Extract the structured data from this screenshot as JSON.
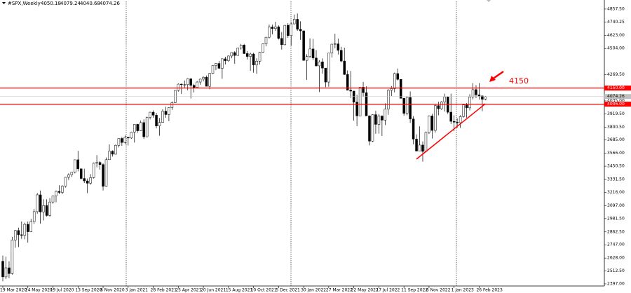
{
  "chart_data": {
    "type": "candlestick",
    "title": "#SPX,Weekly",
    "categories": [
      "19 Mar 2020",
      null,
      null,
      null,
      null,
      null,
      null,
      null,
      "24 May 2020",
      null,
      null,
      null,
      null,
      null,
      null,
      null,
      "19 Jul 2020",
      null,
      null,
      null,
      null,
      null,
      null,
      null,
      "13 Sep 2020",
      null,
      null,
      null,
      null,
      null,
      null,
      null,
      "8 Nov 2020",
      null,
      null,
      null,
      null,
      null,
      null,
      null,
      "3 Jan 2021",
      null,
      null,
      null,
      null,
      null,
      null,
      null,
      "28 Feb 2021",
      null,
      null,
      null,
      null,
      null,
      null,
      null,
      "25 Apr 2021",
      null,
      null,
      null,
      null,
      null,
      null,
      null,
      "20 Jun 2021",
      null,
      null,
      null,
      null,
      null,
      null,
      null,
      "15 Aug 2021",
      null,
      null,
      null,
      null,
      null,
      null,
      null,
      "10 Oct 2021",
      null,
      null,
      null,
      null,
      null,
      null,
      null,
      "5 Dec 2021",
      null,
      null,
      null,
      null,
      null,
      null,
      null,
      "30 Jan 2022",
      null,
      null,
      null,
      null,
      null,
      null,
      null,
      "27 Mar 2022",
      null,
      null,
      null,
      null,
      null,
      null,
      null,
      "22 May 2022",
      null,
      null,
      null,
      null,
      null,
      null,
      null,
      "17 Jul 2022",
      null,
      null,
      null,
      null,
      null,
      null,
      null,
      "11 Sep 2022",
      null,
      null,
      null,
      null,
      null,
      null,
      null,
      "6 Nov 2022",
      null,
      null,
      null,
      null,
      null,
      null,
      null,
      "1 Jan 2023",
      null,
      null,
      null,
      null,
      null,
      null,
      null,
      "26 Feb 2023",
      null,
      null
    ],
    "open": [
      2600,
      2460,
      2541,
      2489,
      2790,
      2875,
      2837,
      2831,
      2930,
      2864,
      2955,
      3044,
      3194,
      3041,
      3098,
      3009,
      3130,
      3185,
      3225,
      3216,
      3271,
      3351,
      3373,
      3397,
      3508,
      3427,
      3341,
      3319,
      3298,
      3348,
      3477,
      3484,
      3465,
      3270,
      3509,
      3585,
      3558,
      3638,
      3699,
      3663,
      3709,
      3703,
      3756,
      3825,
      3768,
      3841,
      3714,
      3887,
      3934,
      3907,
      3811,
      3842,
      3943,
      3913,
      3975,
      4020,
      4129,
      4185,
      4180,
      4181,
      4233,
      4174,
      4156,
      4204,
      4230,
      4247,
      4166,
      4281,
      4352,
      4370,
      4327,
      4412,
      4395,
      4437,
      4468,
      4442,
      4509,
      4535,
      4459,
      4433,
      4455,
      4357,
      4391,
      4471,
      4545,
      4605,
      4697,
      4683,
      4698,
      4595,
      4538,
      4712,
      4620,
      4725,
      4766,
      4677,
      4662,
      4398,
      4432,
      4500,
      4419,
      4349,
      4385,
      4329,
      4204,
      4463,
      4543,
      4546,
      4488,
      4392,
      4272,
      4132,
      4123,
      4024,
      3901,
      4158,
      4109,
      3901,
      3675,
      3912,
      3825,
      3899,
      3863,
      3962,
      4130,
      4145,
      4280,
      4228,
      4058,
      3924,
      4067,
      3873,
      3693,
      3586,
      3640,
      3583,
      3753,
      3901,
      3771,
      3993,
      3965,
      4026,
      4072,
      3934,
      3852,
      3845,
      3840,
      3895,
      3999,
      3973,
      4071,
      4136,
      4090,
      4079,
      4050.18
    ],
    "high": [
      2650,
      2640,
      2600,
      2818,
      2880,
      2900,
      2955,
      2945,
      2955,
      2980,
      3068,
      3211,
      3233,
      3155,
      3155,
      3165,
      3186,
      3233,
      3280,
      3280,
      3352,
      3387,
      3400,
      3509,
      3588,
      3430,
      3428,
      3340,
      3380,
      3483,
      3550,
      3495,
      3476,
      3529,
      3646,
      3593,
      3645,
      3700,
      3712,
      3726,
      3712,
      3760,
      3826,
      3830,
      3860,
      3870,
      3894,
      3937,
      3950,
      3928,
      3882,
      3960,
      3983,
      3978,
      4030,
      4130,
      4191,
      4191,
      4218,
      4238,
      4236,
      4188,
      4213,
      4234,
      4255,
      4262,
      4286,
      4356,
      4372,
      4393,
      4415,
      4430,
      4442,
      4470,
      4480,
      4513,
      4545,
      4545,
      4480,
      4466,
      4466,
      4416,
      4475,
      4550,
      4608,
      4718,
      4718,
      4744,
      4711,
      4652,
      4713,
      4731,
      4740,
      4808,
      4818,
      4749,
      4666,
      4453,
      4595,
      4590,
      4490,
      4400,
      4416,
      4330,
      4465,
      4546,
      4637,
      4593,
      4520,
      4512,
      4308,
      4303,
      4125,
      4090,
      4158,
      4205,
      4165,
      3905,
      3914,
      3946,
      3918,
      3906,
      4013,
      4140,
      4168,
      4289,
      4325,
      4230,
      4062,
      4077,
      4120,
      3899,
      3736,
      3807,
      3673,
      3762,
      3905,
      3920,
      4001,
      4028,
      4034,
      4100,
      4076,
      4100,
      3906,
      3878,
      3907,
      4003,
      4016,
      4095,
      4195,
      4176,
      4195,
      4085,
      4079.24
    ],
    "low": [
      2420,
      2440,
      2447,
      2480,
      2720,
      2727,
      2800,
      2797,
      2766,
      2860,
      2933,
      3025,
      2936,
      2965,
      3000,
      2999,
      3115,
      3127,
      3200,
      3200,
      3260,
      3327,
      3355,
      3386,
      3405,
      3330,
      3300,
      3209,
      3285,
      3340,
      3440,
      3420,
      3233,
      3265,
      3507,
      3537,
      3555,
      3619,
      3633,
      3648,
      3636,
      3695,
      3662,
      3750,
      3765,
      3694,
      3712,
      3870,
      3885,
      3789,
      3723,
      3840,
      3885,
      3853,
      3955,
      4015,
      4118,
      4097,
      4150,
      4130,
      4056,
      4111,
      4150,
      4180,
      4210,
      4165,
      4140,
      4275,
      4310,
      4322,
      4233,
      4362,
      4385,
      4417,
      4367,
      4440,
      4495,
      4455,
      4406,
      4305,
      4288,
      4278,
      4360,
      4465,
      4525,
      4595,
      4630,
      4662,
      4585,
      4495,
      4532,
      4600,
      4531,
      4720,
      4662,
      4582,
      4395,
      4222,
      4420,
      4401,
      4342,
      4114,
      4279,
      4157,
      4161,
      4424,
      4507,
      4450,
      4381,
      4267,
      4128,
      4062,
      3859,
      3810,
      3900,
      4073,
      3900,
      3637,
      3668,
      3741,
      3742,
      3721,
      3818,
      3910,
      4079,
      4112,
      4218,
      4057,
      3903,
      3906,
      3838,
      3647,
      3585,
      3585,
      3491,
      3582,
      3738,
      3698,
      3751,
      3906,
      3955,
      3940,
      3918,
      3828,
      3764,
      3795,
      3794,
      3885,
      3885,
      3950,
      4049,
      4060,
      4047,
      3943,
      4040.68
    ],
    "close": [
      2460,
      2541,
      2489,
      2790,
      2875,
      2837,
      2831,
      2930,
      2864,
      2955,
      3044,
      3194,
      3041,
      3098,
      3009,
      3130,
      3185,
      3225,
      3216,
      3271,
      3351,
      3373,
      3397,
      3508,
      3427,
      3341,
      3319,
      3298,
      3348,
      3477,
      3484,
      3465,
      3270,
      3509,
      3585,
      3558,
      3638,
      3699,
      3663,
      3709,
      3703,
      3756,
      3825,
      3768,
      3841,
      3714,
      3887,
      3934,
      3907,
      3811,
      3842,
      3943,
      3913,
      3975,
      4020,
      4129,
      4185,
      4180,
      4181,
      4233,
      4174,
      4156,
      4204,
      4230,
      4247,
      4166,
      4281,
      4352,
      4370,
      4327,
      4412,
      4395,
      4437,
      4468,
      4442,
      4509,
      4535,
      4459,
      4433,
      4455,
      4357,
      4391,
      4471,
      4545,
      4605,
      4697,
      4683,
      4698,
      4595,
      4538,
      4712,
      4620,
      4725,
      4766,
      4677,
      4662,
      4398,
      4432,
      4500,
      4419,
      4349,
      4385,
      4329,
      4204,
      4463,
      4543,
      4546,
      4488,
      4392,
      4272,
      4132,
      4123,
      4024,
      3901,
      4158,
      4109,
      3901,
      3675,
      3912,
      3825,
      3899,
      3863,
      3962,
      4130,
      4145,
      4280,
      4228,
      4058,
      3924,
      4067,
      3873,
      3693,
      3586,
      3640,
      3583,
      3753,
      3901,
      3771,
      3993,
      3965,
      4026,
      4072,
      3934,
      3852,
      3845,
      3840,
      3895,
      3999,
      3973,
      4071,
      4136,
      4090,
      4079,
      4050,
      4074.26
    ],
    "up_color": "#ffffff",
    "down_color": "#000000",
    "ylim": [
      2378,
      4926
    ],
    "yticks": [
      {
        "value": 4857.5,
        "label": "4857.50"
      },
      {
        "value": 4740.25,
        "label": "4740.25"
      },
      {
        "value": 4623,
        "label": "4623.00"
      },
      {
        "value": 4504,
        "label": "4504.00"
      },
      {
        "value": 4269.5,
        "label": "4269.50"
      },
      {
        "value": 4035,
        "label": "4035.00"
      },
      {
        "value": 3919.5,
        "label": "3919.50"
      },
      {
        "value": 3800.5,
        "label": "3800.50"
      },
      {
        "value": 3685,
        "label": "3685.00"
      },
      {
        "value": 3566,
        "label": "3566.00"
      },
      {
        "value": 3450.5,
        "label": "3450.50"
      },
      {
        "value": 3331.5,
        "label": "3331.50"
      },
      {
        "value": 3216,
        "label": "3216.00"
      },
      {
        "value": 3097,
        "label": "3097.00"
      },
      {
        "value": 2981.5,
        "label": "2981.50"
      },
      {
        "value": 2862.5,
        "label": "2862.50"
      },
      {
        "value": 2747,
        "label": "2747.00"
      },
      {
        "value": 2628,
        "label": "2628.00"
      },
      {
        "value": 2512.5,
        "label": "2512.50"
      },
      {
        "value": 2397,
        "label": "2397.00"
      }
    ],
    "grid": false,
    "hlines": [
      {
        "value": 4150,
        "label": "4150.00",
        "color": "#ff0000"
      },
      {
        "value": 4006,
        "label": "4006.00",
        "color": "#ff0000"
      }
    ],
    "trendline": {
      "from": [
        132,
        3514
      ],
      "to": [
        154,
        4010
      ],
      "color": "#ff0000"
    },
    "annotation": {
      "text": "4150",
      "color": "#ff0000"
    }
  }
}
